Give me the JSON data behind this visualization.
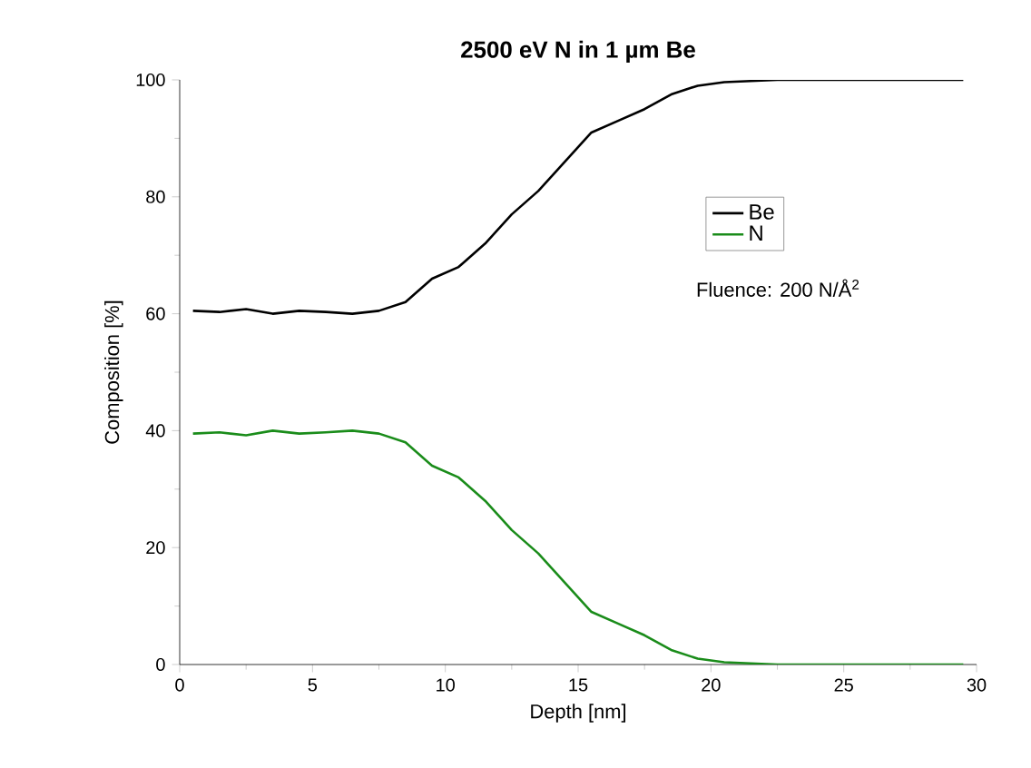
{
  "chart_data": {
    "type": "line",
    "title": "2500 eV N in 1 µm Be",
    "xlabel": "Depth [nm]",
    "ylabel": "Composition [%]",
    "x": [
      0.5,
      1.5,
      2.5,
      3.5,
      4.5,
      5.5,
      6.5,
      7.5,
      8.5,
      9.5,
      10.5,
      11.5,
      12.5,
      13.5,
      14.5,
      15.5,
      16.5,
      17.5,
      18.5,
      19.5,
      20.5,
      21.5,
      22.5,
      23.5,
      24.5,
      25.5,
      26.5,
      27.5,
      28.5,
      29.5
    ],
    "series": [
      {
        "name": "Be",
        "color": "#000000",
        "values": [
          60.5,
          60.3,
          60.8,
          60,
          60.5,
          60.3,
          60,
          60.5,
          62,
          66,
          68,
          72,
          77,
          81,
          86,
          91,
          93,
          95,
          97.5,
          99,
          99.6,
          99.8,
          100,
          100,
          100,
          100,
          100,
          100,
          100,
          100
        ]
      },
      {
        "name": "N",
        "color": "#1a8c1a",
        "values": [
          39.5,
          39.7,
          39.2,
          40,
          39.5,
          39.7,
          40,
          39.5,
          38,
          34,
          32,
          28,
          23,
          19,
          14,
          9,
          7,
          5,
          2.5,
          1,
          0.4,
          0.2,
          0,
          0,
          0,
          0,
          0,
          0,
          0,
          0
        ]
      }
    ],
    "xlim": [
      0,
      30
    ],
    "ylim": [
      0,
      100
    ],
    "xticks": [
      0,
      5,
      10,
      15,
      20,
      25,
      30
    ],
    "yticks": [
      0,
      20,
      40,
      60,
      80,
      100
    ],
    "legend": "right",
    "grid": false,
    "marker": "none",
    "line_style": "solid",
    "annotations": [
      "Fluence: 200 N/Å$^{2}$"
    ]
  }
}
